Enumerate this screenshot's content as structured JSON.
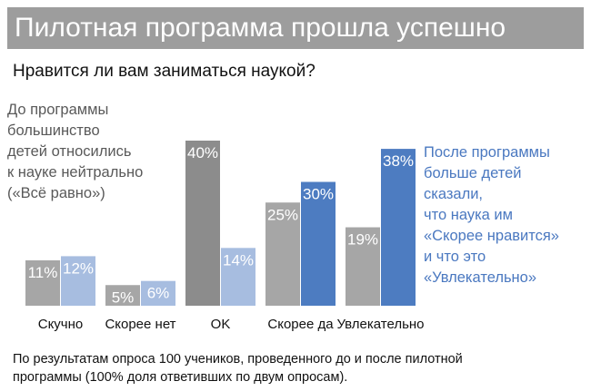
{
  "header": {
    "title": "Пилотная программа прошла успешно"
  },
  "subtitle": "Нравится ли вам заниматься наукой?",
  "left_note": [
    "До программы",
    "большинство",
    "детей относились",
    "к науке нейтрально",
    "(«Всё равно»)"
  ],
  "right_note": [
    "После программы",
    "больше детей",
    "сказали,",
    "что наука им",
    "«Скорее нравится»",
    "и что это",
    "«Увлекательно»"
  ],
  "footnote": [
    "По результатам опроса 100 учеников, проведенного до и после пилотной",
    "программы (100% доля ответивших по двум опросам)."
  ],
  "colors": {
    "before": "#a6a6a6",
    "before_neutral": "#8c8c8c",
    "after_light": "#a7bde0",
    "after_highlight": "#4d7cc1",
    "banner": "#9d9d9d"
  },
  "chart_data": {
    "type": "bar",
    "title": "Нравится ли вам заниматься наукой?",
    "xlabel": "",
    "ylabel": "",
    "ylim": [
      0,
      40
    ],
    "categories": [
      "Скучно",
      "Скорее нет",
      "OK",
      "Скорее да",
      "Увлекательно"
    ],
    "series": [
      {
        "values": [
          11,
          5,
          40,
          25,
          19
        ],
        "labels": [
          "11%",
          "5%",
          "40%",
          "25%",
          "19%"
        ]
      },
      {
        "values": [
          12,
          6,
          14,
          30,
          38
        ],
        "labels": [
          "12%",
          "6%",
          "14%",
          "30%",
          "38%"
        ]
      }
    ],
    "highlight": {
      "OK": "before",
      "Скорее да": "after",
      "Увлекательно": "after"
    },
    "grid": false,
    "legend": "none"
  }
}
